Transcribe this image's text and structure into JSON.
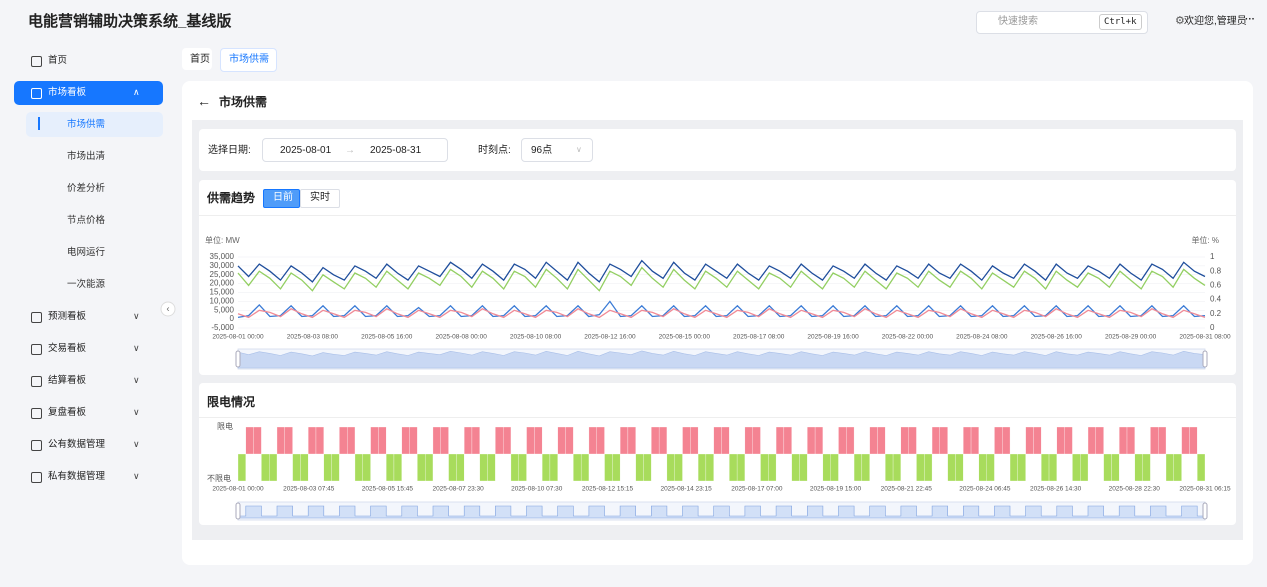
{
  "header": {
    "title": "电能营销辅助决策系统_基线版",
    "search_placeholder": "快速搜索",
    "shortcut": "Ctrl+k",
    "welcome": "欢迎您,管理员",
    "more": "···"
  },
  "sidebar": {
    "items": [
      {
        "label": "首页"
      },
      {
        "label": "市场看板",
        "children": [
          "市场供需",
          "市场出清",
          "价差分析",
          "节点价格",
          "电网运行",
          "一次能源"
        ]
      },
      {
        "label": "预测看板"
      },
      {
        "label": "交易看板"
      },
      {
        "label": "结算看板"
      },
      {
        "label": "复盘看板"
      },
      {
        "label": "公有数据管理"
      },
      {
        "label": "私有数据管理"
      }
    ]
  },
  "tabs": [
    "首页",
    "市场供需"
  ],
  "page": {
    "title": "市场供需",
    "filters": {
      "date_label": "选择日期:",
      "start_date": "2025-08-01",
      "end_date": "2025-08-31",
      "time_label": "时刻点:",
      "time_value": "96点"
    }
  },
  "trend_toggles": [
    "日前",
    "实时"
  ],
  "chart_data": [
    {
      "type": "line",
      "title": "供需趋势",
      "y_unit": "单位: MW",
      "y2_unit": "单位: %",
      "categories": [
        "2025-08-01 00:00",
        null,
        null,
        null,
        null,
        null,
        null,
        "2025-08-03 08:00",
        null,
        null,
        null,
        null,
        null,
        null,
        "2025-08-05 16:00",
        null,
        null,
        null,
        null,
        null,
        null,
        "2025-08-08 00:00",
        null,
        null,
        null,
        null,
        null,
        null,
        "2025-08-10 08:00",
        null,
        null,
        null,
        null,
        null,
        null,
        "2025-08-12 16:00",
        null,
        null,
        null,
        null,
        null,
        null,
        "2025-08-15 00:00",
        null,
        null,
        null,
        null,
        null,
        null,
        "2025-08-17 08:00",
        null,
        null,
        null,
        null,
        null,
        null,
        "2025-08-19 16:00",
        null,
        null,
        null,
        null,
        null,
        null,
        "2025-08-22 00:00",
        null,
        null,
        null,
        null,
        null,
        null,
        "2025-08-24 08:00",
        null,
        null,
        null,
        null,
        null,
        null,
        "2025-08-26 16:00",
        null,
        null,
        null,
        null,
        null,
        null,
        "2025-08-29 00:00",
        null,
        null,
        null,
        null,
        null,
        null,
        "2025-08-31 08:00"
      ],
      "series": [
        {
          "color": "#1f4e9c",
          "values": [
            30000,
            24000,
            31000,
            27000,
            22000,
            30000,
            26000,
            21000,
            29000,
            25000,
            22000,
            30000,
            27000,
            23000,
            31000,
            26000,
            22000,
            30000,
            27000,
            24000,
            32000,
            28000,
            23000,
            31000,
            27000,
            22000,
            31000,
            28000,
            23000,
            32000,
            27000,
            22000,
            32000,
            26000,
            21000,
            31000,
            28000,
            24000,
            33000,
            27000,
            23000,
            32000,
            26000,
            22000,
            31000,
            27000,
            23000,
            31000,
            26000,
            22000,
            30000,
            27000,
            23000,
            31000,
            26000,
            22000,
            30000,
            27000,
            23000,
            31000,
            26000,
            22000,
            30000,
            27000,
            23000,
            31000,
            26000,
            23000,
            31000,
            27000,
            22000,
            30000,
            26000,
            23000,
            31000,
            27000,
            22000,
            31000,
            26000,
            23000,
            30000,
            27000,
            23000,
            31000,
            26000,
            22000,
            31000,
            28000,
            23000,
            32000,
            27000,
            24000
          ]
        },
        {
          "color": "#93cf62",
          "values": [
            26000,
            19000,
            27000,
            23000,
            17000,
            26000,
            22000,
            16000,
            25000,
            21000,
            17000,
            26000,
            23000,
            18000,
            27000,
            22000,
            17000,
            26000,
            23000,
            19000,
            28000,
            24000,
            18000,
            27000,
            23000,
            17000,
            27000,
            24000,
            18000,
            28000,
            23000,
            17000,
            28000,
            22000,
            16000,
            27000,
            24000,
            19000,
            29000,
            23000,
            18000,
            28000,
            22000,
            17000,
            27000,
            23000,
            18000,
            27000,
            22000,
            17000,
            26000,
            23000,
            18000,
            27000,
            22000,
            17000,
            26000,
            23000,
            18000,
            27000,
            22000,
            17000,
            26000,
            23000,
            18000,
            27000,
            22000,
            18000,
            27000,
            23000,
            17000,
            26000,
            22000,
            18000,
            27000,
            23000,
            17000,
            27000,
            22000,
            18000,
            26000,
            23000,
            18000,
            27000,
            22000,
            17000,
            27000,
            24000,
            18000,
            28000,
            23000,
            19000
          ]
        },
        {
          "color": "#3b7bd6",
          "values": [
            1000,
            2000,
            8000,
            1500,
            2000,
            7500,
            1500,
            2000,
            7500,
            1500,
            2000,
            7500,
            1500,
            2000,
            7500,
            1500,
            2000,
            6500,
            1500,
            2000,
            7500,
            1500,
            2000,
            7500,
            1500,
            2000,
            7500,
            1500,
            2000,
            7500,
            1500,
            2000,
            7500,
            1500,
            2500,
            10000,
            1500,
            2000,
            7500,
            1500,
            2000,
            7500,
            1500,
            2000,
            7500,
            1500,
            2000,
            7500,
            1500,
            2000,
            7500,
            1500,
            2000,
            7500,
            1500,
            2000,
            7500,
            1500,
            2000,
            7500,
            1500,
            2000,
            7500,
            1500,
            2000,
            7500,
            1500,
            2000,
            7500,
            1500,
            2000,
            7500,
            1500,
            2000,
            7500,
            1500,
            2000,
            7500,
            1500,
            2000,
            7500,
            1500,
            2000,
            7500,
            1500,
            2000,
            7500,
            1500,
            2000,
            7500,
            1500,
            2000
          ]
        },
        {
          "color": "#f08a96",
          "axis": "y2",
          "values": [
            0.2,
            0.15,
            0.25,
            0.22,
            0.16,
            0.27,
            0.2,
            0.15,
            0.25,
            0.2,
            0.15,
            0.25,
            0.22,
            0.16,
            0.27,
            0.2,
            0.15,
            0.25,
            0.2,
            0.15,
            0.25,
            0.22,
            0.16,
            0.27,
            0.2,
            0.15,
            0.25,
            0.2,
            0.15,
            0.25,
            0.22,
            0.16,
            0.27,
            0.2,
            0.15,
            0.25,
            0.2,
            0.15,
            0.25,
            0.22,
            0.16,
            0.27,
            0.2,
            0.15,
            0.25,
            0.2,
            0.15,
            0.25,
            0.22,
            0.16,
            0.27,
            0.2,
            0.15,
            0.25,
            0.2,
            0.15,
            0.25,
            0.22,
            0.16,
            0.27,
            0.2,
            0.15,
            0.25,
            0.2,
            0.15,
            0.25,
            0.22,
            0.16,
            0.27,
            0.2,
            0.15,
            0.25,
            0.2,
            0.15,
            0.25,
            0.22,
            0.16,
            0.27,
            0.2,
            0.15,
            0.25,
            0.2,
            0.15,
            0.25,
            0.22,
            0.16,
            0.27,
            0.2,
            0.15,
            0.25,
            0.2,
            0.15
          ]
        }
      ],
      "ylim": [
        -5000,
        35000
      ],
      "yticks": [
        {
          "value": 35000,
          "label": "35,000"
        },
        {
          "value": 30000,
          "label": "30,000"
        },
        {
          "value": 25000,
          "label": "25,000"
        },
        {
          "value": 20000,
          "label": "20,000"
        },
        {
          "value": 15000,
          "label": "15,000"
        },
        {
          "value": 10000,
          "label": "10,000"
        },
        {
          "value": 5000,
          "label": "5,000"
        },
        0,
        {
          "value": -5000,
          "label": "-5,000"
        }
      ],
      "y2lim": [
        0,
        1
      ],
      "y2ticks": [
        0,
        0.2,
        0.4,
        0.6,
        0.8,
        1
      ],
      "grid": true
    },
    {
      "type": "status",
      "title": "限电情况",
      "ylabels": [
        "不限电",
        "限电"
      ],
      "colors": [
        "#a8dc5c",
        "#f48392"
      ],
      "categories": [
        "2025-08-01 00:00",
        null,
        null,
        null,
        null,
        null,
        null,
        null,
        null,
        "2025-08-03 07:45",
        null,
        null,
        null,
        null,
        null,
        null,
        null,
        null,
        null,
        "2025-08-05 15:45",
        null,
        null,
        null,
        null,
        null,
        null,
        null,
        null,
        "2025-08-07 23:30",
        null,
        null,
        null,
        null,
        null,
        null,
        null,
        null,
        null,
        "2025-08-10 07:30",
        null,
        null,
        null,
        null,
        null,
        null,
        null,
        null,
        "2025-08-12 15:15",
        null,
        null,
        null,
        null,
        null,
        null,
        null,
        null,
        null,
        "2025-08-14 23:15",
        null,
        null,
        null,
        null,
        null,
        null,
        null,
        null,
        "2025-08-17 07:00",
        null,
        null,
        null,
        null,
        null,
        null,
        null,
        null,
        null,
        "2025-08-19 15:00",
        null,
        null,
        null,
        null,
        null,
        null,
        null,
        null,
        "2025-08-21 22:45",
        null,
        null,
        null,
        null,
        null,
        null,
        null,
        null,
        null,
        "2025-08-24 06:45",
        null,
        null,
        null,
        null,
        null,
        null,
        null,
        null,
        "2025-08-26 14:30",
        null,
        null,
        null,
        null,
        null,
        null,
        null,
        null,
        null,
        "2025-08-28 22:30",
        null,
        null,
        null,
        null,
        null,
        null,
        null,
        null,
        "2025-08-31 06:15"
      ],
      "values": [
        0,
        1,
        1,
        0,
        0,
        1,
        1,
        0,
        0,
        1,
        1,
        0,
        0,
        1,
        1,
        0,
        0,
        1,
        1,
        0,
        0,
        1,
        1,
        0,
        0,
        1,
        1,
        0,
        0,
        1,
        1,
        0,
        0,
        1,
        1,
        0,
        0,
        1,
        1,
        0,
        0,
        1,
        1,
        0,
        0,
        1,
        1,
        0,
        0,
        1,
        1,
        0,
        0,
        1,
        1,
        0,
        0,
        1,
        1,
        0,
        0,
        1,
        1,
        0,
        0,
        1,
        1,
        0,
        0,
        1,
        1,
        0,
        0,
        1,
        1,
        0,
        0,
        1,
        1,
        0,
        0,
        1,
        1,
        0,
        0,
        1,
        1,
        0,
        0,
        1,
        1,
        0,
        0,
        1,
        1,
        0,
        0,
        1,
        1,
        0,
        0,
        1,
        1,
        0,
        0,
        1,
        1,
        0,
        0,
        1,
        1,
        0,
        0,
        1,
        1,
        0,
        0,
        1,
        1,
        0,
        0,
        1,
        1,
        0
      ]
    }
  ]
}
